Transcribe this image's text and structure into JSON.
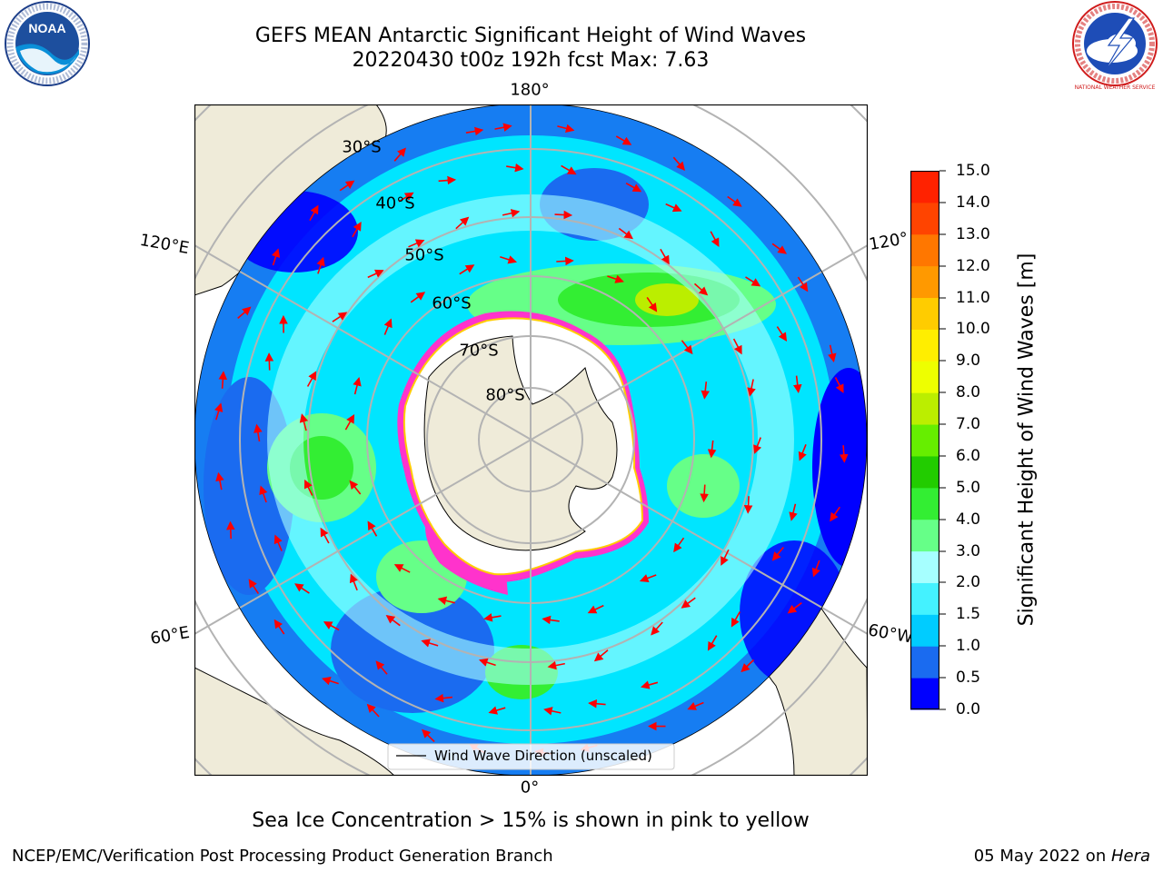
{
  "title": {
    "line1": "GEFS MEAN Antarctic Significant Height of Wind Waves",
    "line2": "20220430 t00z 192h fcst   Max: 7.63"
  },
  "logos": {
    "noaa_text": "NOAA",
    "nws_text": "NATIONAL WEATHER SERVICE"
  },
  "map": {
    "lon_labels": [
      "180°",
      "0°",
      "120°E",
      "60°E",
      "120°",
      "60°W"
    ],
    "lat_labels": [
      "30°S",
      "40°S",
      "50°S",
      "60°S",
      "70°S",
      "80°S"
    ],
    "legend": "Wind Wave Direction (unscaled)",
    "colors": {
      "land": "#efebd9",
      "ice_shelf": "#ffffff",
      "sea_ice_edge": "#ff33cc"
    }
  },
  "colorbar": {
    "label": "Significant Height of Wind Waves [m]",
    "ticks": [
      "0.0",
      "0.5",
      "1.0",
      "1.5",
      "2.0",
      "3.0",
      "4.0",
      "5.0",
      "6.0",
      "7.0",
      "8.0",
      "9.0",
      "10.0",
      "11.0",
      "12.0",
      "13.0",
      "14.0",
      "15.0"
    ],
    "colors": [
      "#0000ff",
      "#1a6bf0",
      "#00ccff",
      "#44f2ff",
      "#a6ffff",
      "#66ff88",
      "#33ee33",
      "#22cc00",
      "#66ee00",
      "#bbee00",
      "#eeff00",
      "#ffee00",
      "#ffcc00",
      "#ff9900",
      "#ff7700",
      "#ff4400",
      "#ff2200"
    ]
  },
  "subtitle": "Sea Ice Concentration > 15% is shown in pink to yellow",
  "footer": {
    "left": "NCEP/EMC/Verification Post Processing Product Generation Branch",
    "date": "05 May 2022 on ",
    "machine": "Hera"
  }
}
